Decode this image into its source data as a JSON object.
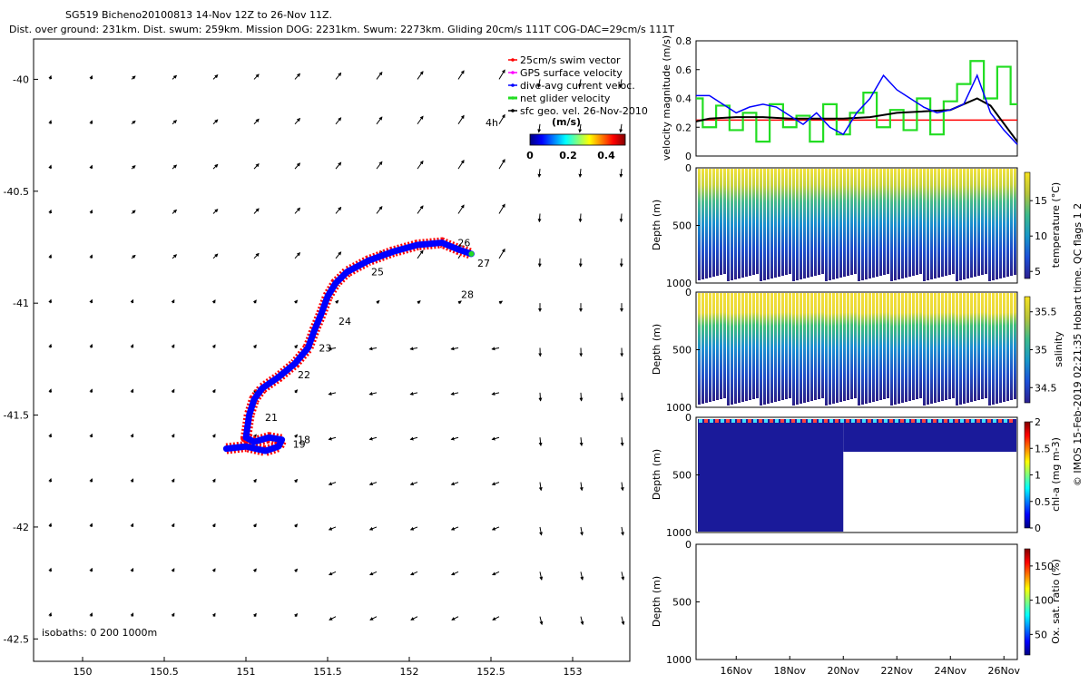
{
  "header": {
    "line1": "SG519 Bicheno20100813 14-Nov 12Z to 26-Nov 11Z.",
    "line2": "Dist. over ground: 231km. Dist. swum: 259km. Mission DOG: 2231km. Swum: 2273km. Gliding 20cm/s 111T COG-DAC=29cm/s 111T"
  },
  "colors": {
    "swim": "#ff0000",
    "gps": "#ff00ff",
    "dac": "#0000ff",
    "net": "#22dd22",
    "geo": "#000000",
    "ref_line": "#ff0000"
  },
  "footer_credit": "© IMOS 15-Feb-2019 02:21:35 Hobart time. QC flags 1  2",
  "chart_data": [
    {
      "type": "scatter",
      "id": "track_map",
      "xlim": [
        149.7,
        153.35
      ],
      "ylim": [
        -42.6,
        -39.82
      ],
      "xticks": [
        "150",
        "150.5",
        "151",
        "151.5",
        "152",
        "152.5",
        "153"
      ],
      "yticks": [
        "-40",
        "-40.5",
        "-41",
        "-41.5",
        "-42",
        "-42.5"
      ],
      "legend": [
        {
          "label": "25cm/s swim vector",
          "color": "#ff0000"
        },
        {
          "label": "GPS surface velocity",
          "color": "#ff00ff"
        },
        {
          "label": "dive-avg current veloc.",
          "color": "#0000ff"
        },
        {
          "label": "net glider velocity",
          "color": "#22dd22"
        },
        {
          "label": "sfc geo. vel. 26-Nov-2010",
          "color": "#000000"
        }
      ],
      "colorbar": {
        "label": "(m/s)",
        "ticks": [
          "0",
          "0.2",
          "0.4"
        ],
        "range": [
          0,
          0.5
        ]
      },
      "scale_label": "4h",
      "isobaths_label": "isobaths: 0   200   1000m",
      "track": [
        [
          150.88,
          -41.65
        ],
        [
          151.0,
          -41.64
        ],
        [
          151.12,
          -41.66
        ],
        [
          151.2,
          -41.64
        ],
        [
          151.22,
          -41.61
        ],
        [
          151.14,
          -41.6
        ],
        [
          151.05,
          -41.62
        ],
        [
          151.0,
          -41.6
        ],
        [
          151.02,
          -41.5
        ],
        [
          151.05,
          -41.43
        ],
        [
          151.1,
          -41.38
        ],
        [
          151.2,
          -41.33
        ],
        [
          151.3,
          -41.27
        ],
        [
          151.38,
          -41.2
        ],
        [
          151.42,
          -41.12
        ],
        [
          151.46,
          -41.05
        ],
        [
          151.5,
          -40.97
        ],
        [
          151.55,
          -40.91
        ],
        [
          151.62,
          -40.86
        ],
        [
          151.75,
          -40.81
        ],
        [
          151.9,
          -40.77
        ],
        [
          152.05,
          -40.74
        ],
        [
          152.2,
          -40.73
        ],
        [
          152.3,
          -40.76
        ],
        [
          152.38,
          -40.78
        ]
      ],
      "day_labels": [
        {
          "day": "18",
          "lon": 151.3,
          "lat": -41.61
        },
        {
          "day": "19",
          "lon": 151.27,
          "lat": -41.63
        },
        {
          "day": "21",
          "lon": 151.1,
          "lat": -41.51
        },
        {
          "day": "22",
          "lon": 151.3,
          "lat": -41.32
        },
        {
          "day": "23",
          "lon": 151.43,
          "lat": -41.2
        },
        {
          "day": "24",
          "lon": 151.55,
          "lat": -41.08
        },
        {
          "day": "25",
          "lon": 151.75,
          "lat": -40.86
        },
        {
          "day": "26",
          "lon": 152.28,
          "lat": -40.73
        },
        {
          "day": "27",
          "lon": 152.4,
          "lat": -40.82
        },
        {
          "day": "28",
          "lon": 152.3,
          "lat": -40.96
        }
      ]
    },
    {
      "type": "line",
      "id": "velocity_magnitude",
      "ylabel": "velocity magnitude (m/s)",
      "ylim": [
        0,
        0.8
      ],
      "yticks": [
        "0",
        "0.2",
        "0.4",
        "0.6",
        "0.8"
      ],
      "x_days": [
        14.5,
        26.5
      ],
      "ref_value": 0.25,
      "series": [
        {
          "color": "#000000",
          "x": [
            14.5,
            15,
            16,
            17,
            18,
            19,
            20,
            21,
            22,
            23,
            24,
            25,
            25.5,
            26.5
          ],
          "values": [
            0.24,
            0.26,
            0.27,
            0.27,
            0.26,
            0.26,
            0.26,
            0.27,
            0.3,
            0.31,
            0.32,
            0.4,
            0.35,
            0.1
          ]
        },
        {
          "color": "#0000ff",
          "x": [
            14.5,
            15,
            15.5,
            16,
            16.5,
            17,
            17.5,
            18,
            18.5,
            19,
            19.5,
            20,
            20.5,
            21,
            21.5,
            22,
            22.5,
            23,
            23.5,
            24,
            24.5,
            25,
            25.5,
            26,
            26.5
          ],
          "values": [
            0.42,
            0.42,
            0.36,
            0.3,
            0.34,
            0.36,
            0.34,
            0.28,
            0.22,
            0.3,
            0.2,
            0.15,
            0.3,
            0.4,
            0.56,
            0.46,
            0.4,
            0.34,
            0.3,
            0.32,
            0.36,
            0.56,
            0.3,
            0.18,
            0.08
          ]
        },
        {
          "color": "#22dd22",
          "x": [
            14.5,
            15,
            15.5,
            16,
            16.5,
            17,
            17.5,
            18,
            18.5,
            19,
            19.5,
            20,
            20.5,
            21,
            21.5,
            22,
            22.5,
            23,
            23.5,
            24,
            24.5,
            25,
            25.5,
            26,
            26.5
          ],
          "values": [
            0.4,
            0.2,
            0.35,
            0.18,
            0.3,
            0.1,
            0.36,
            0.2,
            0.28,
            0.1,
            0.36,
            0.15,
            0.3,
            0.44,
            0.2,
            0.32,
            0.18,
            0.4,
            0.15,
            0.38,
            0.5,
            0.66,
            0.4,
            0.62,
            0.36
          ]
        }
      ]
    },
    {
      "type": "heatmap",
      "id": "temperature",
      "ylabel": "Depth (m)",
      "yticks": [
        "0",
        "500",
        "1000"
      ],
      "colorbar_label": "temperature (°C)",
      "colorbar_ticks": [
        "5",
        "10",
        "15"
      ],
      "colorbar_range": [
        4,
        19
      ]
    },
    {
      "type": "heatmap",
      "id": "salinity",
      "ylabel": "Depth (m)",
      "yticks": [
        "0",
        "500",
        "1000"
      ],
      "colorbar_label": "salinity",
      "colorbar_ticks": [
        "34.5",
        "35",
        "35.5"
      ],
      "colorbar_range": [
        34.3,
        35.7
      ]
    },
    {
      "type": "heatmap",
      "id": "chlorophyll",
      "ylabel": "Depth (m)",
      "yticks": [
        "0",
        "500",
        "1000"
      ],
      "colorbar_label": "chl-a (mg m-3)",
      "colorbar_ticks": [
        "0",
        "0.5",
        "1",
        "1.5",
        "2"
      ],
      "colorbar_range": [
        0,
        2
      ]
    },
    {
      "type": "heatmap",
      "id": "oxygen",
      "ylabel": "Depth (m)",
      "yticks": [
        "0",
        "500",
        "1000"
      ],
      "colorbar_label": "Ox. sat. ratio (%)",
      "colorbar_ticks": [
        "50",
        "100",
        "150"
      ],
      "colorbar_range": [
        20,
        175
      ],
      "xticks": [
        "16Nov",
        "18Nov",
        "20Nov",
        "22Nov",
        "24Nov",
        "26Nov"
      ]
    }
  ]
}
